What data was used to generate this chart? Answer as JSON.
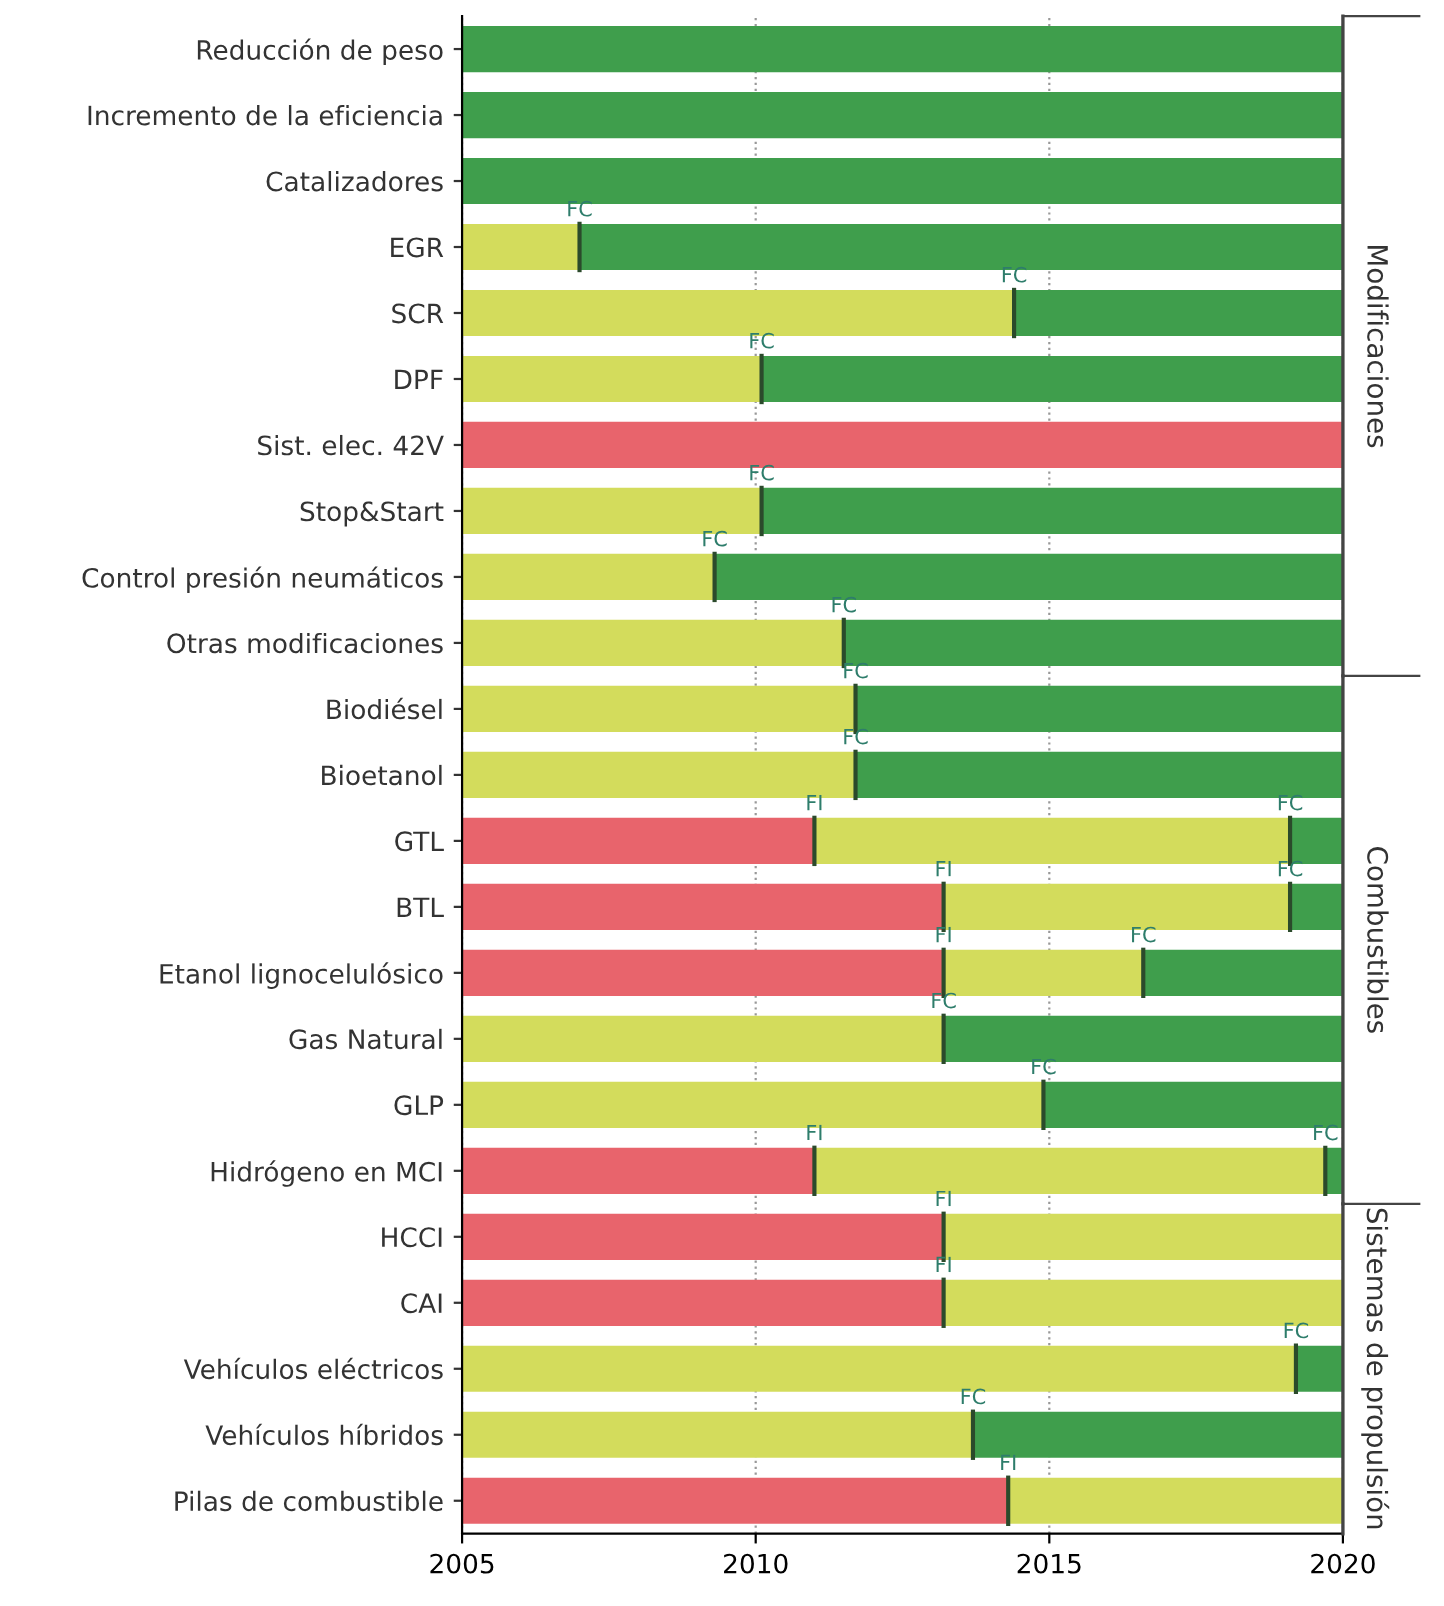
{
  "chart_data": {
    "type": "bar",
    "orientation": "horizontal",
    "categories": [
      "Reducción de peso",
      "Incremento de la eficiencia",
      "Catalizadores",
      "EGR",
      "SCR",
      "DPF",
      "Sist. elec. 42V",
      "Stop&Start",
      "Control presión neumáticos",
      "Otras modificaciones",
      "Biodiésel",
      "Bioetanol",
      "GTL",
      "BTL",
      "Etanol lignocelulósico",
      "Gas Natural",
      "GLP",
      "Hidrógeno en MCI",
      "HCCI",
      "CAI",
      "Vehículos eléctricos",
      "Vehículos híbridos",
      "Pilas de combustible"
    ],
    "series": [
      {
        "color": "#e8646c",
        "base": [
          null,
          null,
          null,
          null,
          null,
          null,
          2005,
          null,
          null,
          null,
          null,
          null,
          2005,
          2005,
          2005,
          null,
          null,
          2005,
          2005,
          2005,
          null,
          null,
          2005
        ],
        "values": [
          null,
          null,
          null,
          null,
          null,
          null,
          15,
          null,
          null,
          null,
          null,
          null,
          6.0,
          8.2,
          8.2,
          null,
          null,
          6.0,
          8.2,
          8.2,
          null,
          null,
          9.3
        ]
      },
      {
        "color": "#d3dc5c",
        "base": [
          null,
          null,
          null,
          2005,
          2005,
          2005,
          null,
          2005,
          2005,
          2005,
          2005,
          2005,
          2011.0,
          2013.2,
          2013.2,
          2005,
          2005,
          2011.0,
          2013.2,
          2013.2,
          2005,
          2005,
          2014.3
        ],
        "values": [
          null,
          null,
          null,
          2.0,
          9.4,
          5.1,
          null,
          5.1,
          4.3,
          6.5,
          6.7,
          6.7,
          8.1,
          5.9,
          3.4,
          8.2,
          9.9,
          8.7,
          6.8,
          6.8,
          14.2,
          8.7,
          5.7
        ]
      },
      {
        "color": "#3f9e4c",
        "base": [
          2005,
          2005,
          2005,
          2007.0,
          2014.4,
          2010.1,
          null,
          2010.1,
          2009.3,
          2011.5,
          2011.7,
          2011.7,
          2019.1,
          2019.1,
          2016.6,
          2013.2,
          2014.9,
          2019.7,
          null,
          null,
          2019.2,
          2013.7,
          null
        ],
        "values": [
          15,
          15,
          15,
          13.0,
          5.6,
          9.9,
          null,
          9.9,
          10.7,
          8.5,
          8.3,
          8.3,
          0.9,
          0.9,
          3.4,
          6.8,
          5.1,
          0.3,
          null,
          null,
          0.8,
          6.3,
          null
        ]
      }
    ],
    "xlim": [
      2005,
      2020
    ],
    "xticks": [
      2005,
      2010,
      2015,
      2020
    ],
    "grid": "x",
    "annotations": [
      {
        "text": "FC",
        "x": 2007.0,
        "y": "EGR"
      },
      {
        "text": "FC",
        "x": 2014.4,
        "y": "SCR"
      },
      {
        "text": "FC",
        "x": 2010.1,
        "y": "DPF"
      },
      {
        "text": "FC",
        "x": 2010.1,
        "y": "Stop&Start"
      },
      {
        "text": "FC",
        "x": 2009.3,
        "y": "Control presión neumáticos"
      },
      {
        "text": "FC",
        "x": 2011.5,
        "y": "Otras modificaciones"
      },
      {
        "text": "FC",
        "x": 2011.7,
        "y": "Biodiésel"
      },
      {
        "text": "FC",
        "x": 2011.7,
        "y": "Bioetanol"
      },
      {
        "text": "FI",
        "x": 2011.0,
        "y": "GTL"
      },
      {
        "text": "FC",
        "x": 2019.1,
        "y": "GTL"
      },
      {
        "text": "FI",
        "x": 2013.2,
        "y": "BTL"
      },
      {
        "text": "FC",
        "x": 2019.1,
        "y": "BTL"
      },
      {
        "text": "FI",
        "x": 2013.2,
        "y": "Etanol lignocelulósico"
      },
      {
        "text": "FC",
        "x": 2016.6,
        "y": "Etanol lignocelulósico"
      },
      {
        "text": "FC",
        "x": 2013.2,
        "y": "Gas Natural"
      },
      {
        "text": "FC",
        "x": 2014.9,
        "y": "GLP"
      },
      {
        "text": "FI",
        "x": 2011.0,
        "y": "Hidrógeno en MCI"
      },
      {
        "text": "FC",
        "x": 2019.7,
        "y": "Hidrógeno en MCI"
      },
      {
        "text": "FI",
        "x": 2013.2,
        "y": "HCCI"
      },
      {
        "text": "FI",
        "x": 2013.2,
        "y": "CAI"
      },
      {
        "text": "FC",
        "x": 2019.2,
        "y": "Vehículos eléctricos"
      },
      {
        "text": "FC",
        "x": 2013.7,
        "y": "Vehículos híbridos"
      },
      {
        "text": "FI",
        "x": 2014.3,
        "y": "Pilas de combustible"
      },
      "Modificaciones",
      "Combustibles",
      "Sistemas de propulsión"
    ]
  }
}
